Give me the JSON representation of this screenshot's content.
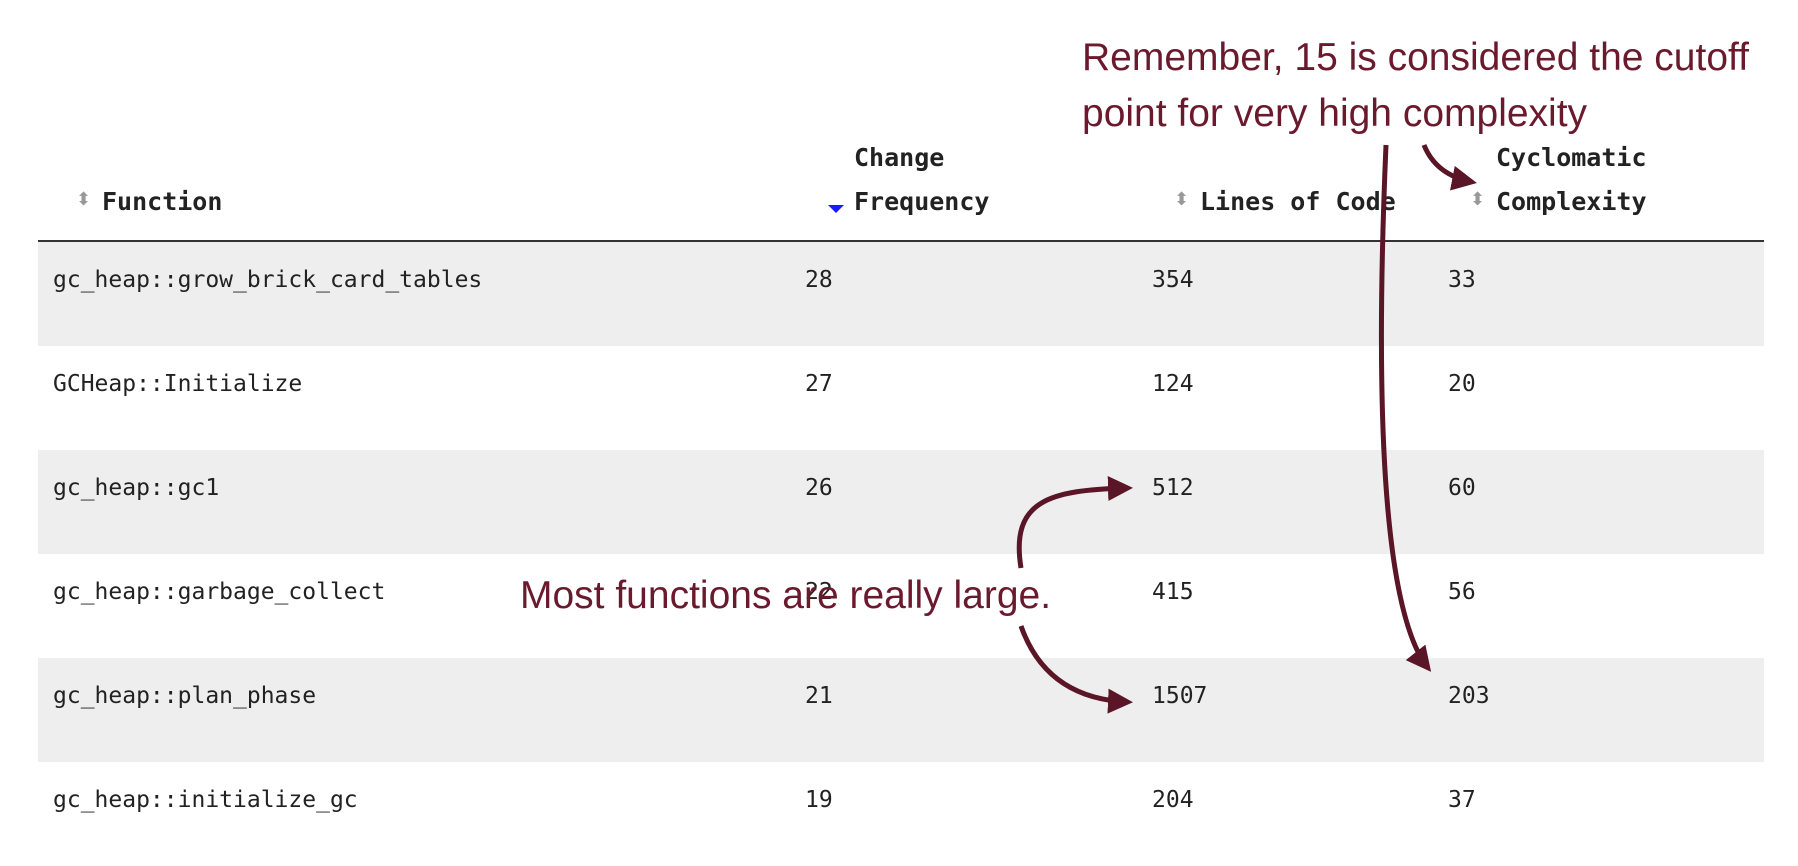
{
  "table": {
    "columns": [
      "Function",
      "Change Frequency",
      "Lines of Code",
      "Cyclomatic Complexity"
    ],
    "rows": [
      [
        "gc_heap::grow_brick_card_tables",
        28,
        354,
        33
      ],
      [
        "GCHeap::Initialize",
        27,
        124,
        20
      ],
      [
        "gc_heap::gc1",
        26,
        512,
        60
      ],
      [
        "gc_heap::garbage_collect",
        22,
        415,
        56
      ],
      [
        "gc_heap::plan_phase",
        21,
        1507,
        203
      ],
      [
        "gc_heap::initialize_gc",
        19,
        204,
        37
      ]
    ]
  },
  "annotations": [
    "Remember, 15 is considered the cutoff point for very high complexity",
    "Most functions are really large."
  ]
}
